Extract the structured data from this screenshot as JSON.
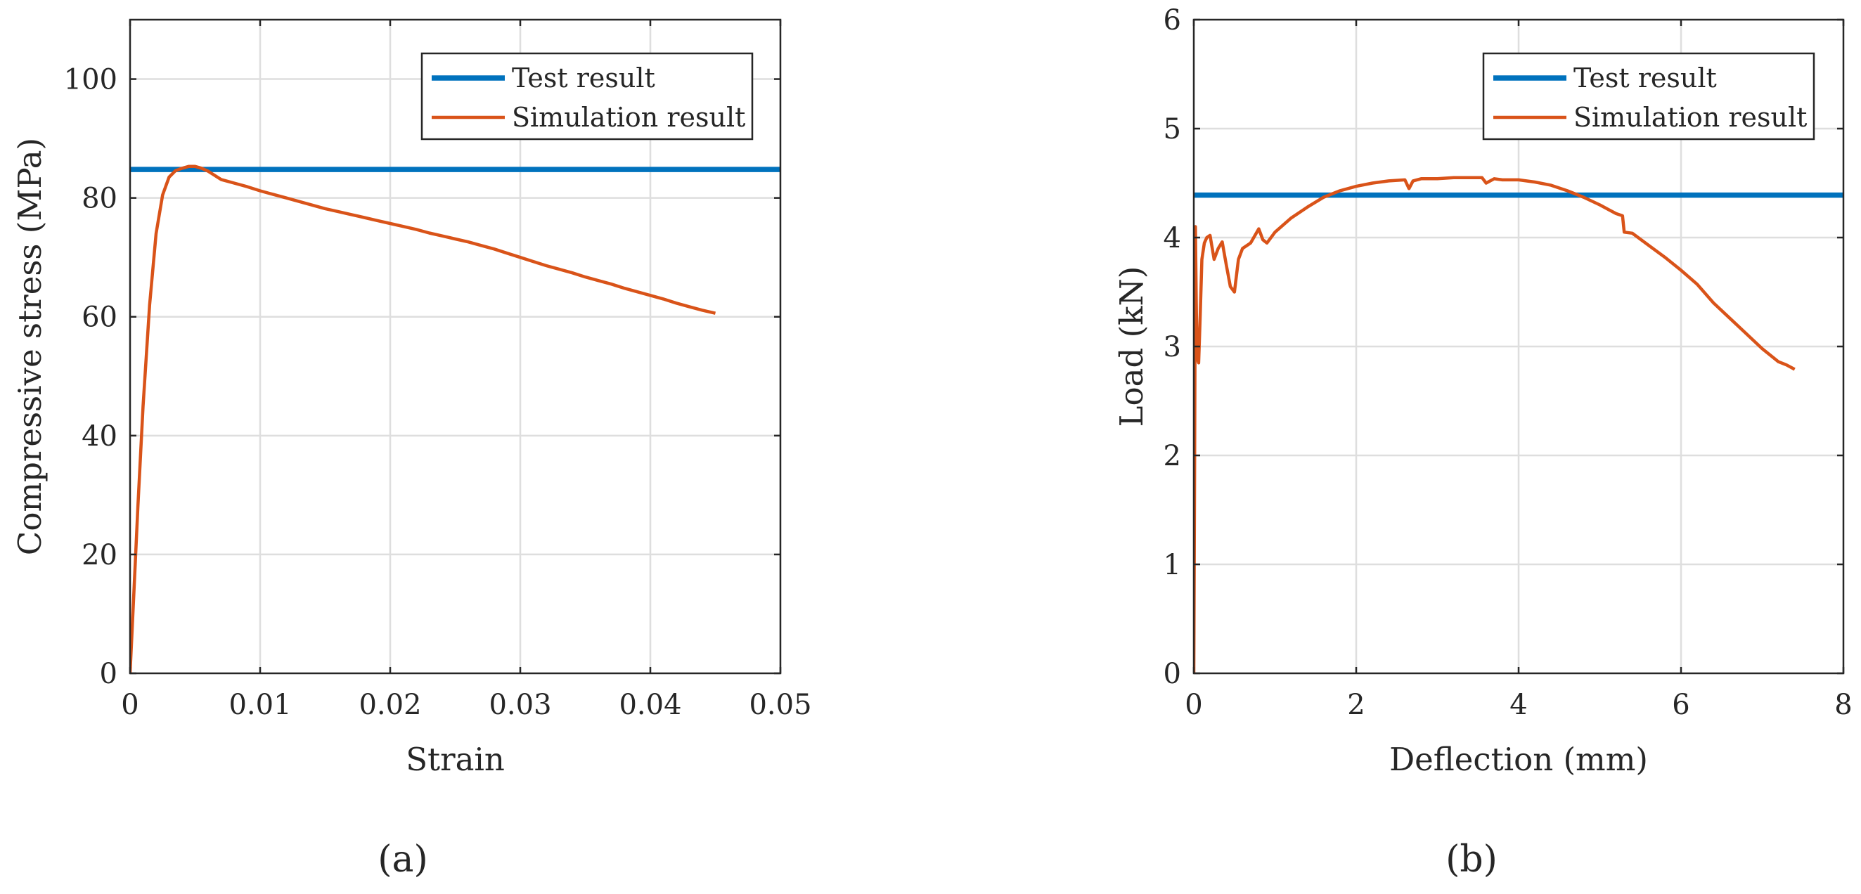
{
  "chart_data": [
    {
      "type": "line",
      "panel_label": "(a)",
      "xlabel": "Strain",
      "ylabel": "Compressive stress (MPa)",
      "xlim": [
        0,
        0.05
      ],
      "ylim": [
        0,
        110
      ],
      "xticks": [
        0,
        0.01,
        0.02,
        0.03,
        0.04,
        0.05
      ],
      "xtick_labels": [
        "0",
        "0.01",
        "0.02",
        "0.03",
        "0.04",
        "0.05"
      ],
      "yticks": [
        0,
        20,
        40,
        60,
        80,
        100
      ],
      "ytick_labels": [
        "0",
        "20",
        "40",
        "60",
        "80",
        "100"
      ],
      "grid": true,
      "legend_position": "top-right",
      "series": [
        {
          "name": "Test result",
          "color": "#0072BD",
          "style": "thick",
          "x": [
            0,
            0.05
          ],
          "y": [
            84.8,
            84.8
          ]
        },
        {
          "name": "Simulation result",
          "color": "#D95319",
          "style": "normal",
          "x": [
            0,
            0.0003,
            0.0006,
            0.001,
            0.0015,
            0.002,
            0.0025,
            0.003,
            0.0035,
            0.004,
            0.0045,
            0.005,
            0.0055,
            0.006,
            0.0065,
            0.007,
            0.008,
            0.009,
            0.01,
            0.011,
            0.012,
            0.013,
            0.014,
            0.015,
            0.016,
            0.017,
            0.018,
            0.019,
            0.02,
            0.021,
            0.022,
            0.023,
            0.024,
            0.025,
            0.026,
            0.027,
            0.028,
            0.029,
            0.03,
            0.031,
            0.032,
            0.033,
            0.034,
            0.035,
            0.036,
            0.037,
            0.038,
            0.039,
            0.04,
            0.041,
            0.042,
            0.043,
            0.044,
            0.045
          ],
          "y": [
            0,
            14,
            28,
            45,
            62,
            74,
            80.5,
            83.5,
            84.6,
            85,
            85.3,
            85.3,
            85,
            84.5,
            83.8,
            83.1,
            82.5,
            81.9,
            81.2,
            80.6,
            80,
            79.4,
            78.8,
            78.2,
            77.7,
            77.2,
            76.7,
            76.2,
            75.7,
            75.2,
            74.7,
            74.1,
            73.6,
            73.1,
            72.6,
            72,
            71.4,
            70.7,
            70,
            69.3,
            68.6,
            68,
            67.4,
            66.7,
            66.1,
            65.5,
            64.8,
            64.2,
            63.6,
            63,
            62.3,
            61.7,
            61.1,
            60.6
          ]
        }
      ]
    },
    {
      "type": "line",
      "panel_label": "(b)",
      "xlabel": "Deflection (mm)",
      "ylabel": "Load (kN)",
      "xlim": [
        0,
        8
      ],
      "ylim": [
        0,
        6
      ],
      "xticks": [
        0,
        2,
        4,
        6,
        8
      ],
      "xtick_labels": [
        "0",
        "2",
        "4",
        "6",
        "8"
      ],
      "yticks": [
        0,
        1,
        2,
        3,
        4,
        5,
        6
      ],
      "ytick_labels": [
        "0",
        "1",
        "2",
        "3",
        "4",
        "5",
        "6"
      ],
      "grid": true,
      "legend_position": "top-right",
      "series": [
        {
          "name": "Test result",
          "color": "#0072BD",
          "style": "thick",
          "x": [
            0,
            8
          ],
          "y": [
            4.39,
            4.39
          ]
        },
        {
          "name": "Simulation result",
          "color": "#D95319",
          "style": "normal",
          "x": [
            0,
            0.01,
            0.02,
            0.03,
            0.04,
            0.06,
            0.08,
            0.1,
            0.13,
            0.16,
            0.2,
            0.25,
            0.3,
            0.35,
            0.4,
            0.45,
            0.5,
            0.55,
            0.6,
            0.7,
            0.8,
            0.85,
            0.9,
            1.0,
            1.2,
            1.4,
            1.6,
            1.8,
            2.0,
            2.2,
            2.4,
            2.6,
            2.65,
            2.7,
            2.8,
            3.0,
            3.2,
            3.4,
            3.55,
            3.6,
            3.7,
            3.8,
            4.0,
            4.2,
            4.4,
            4.6,
            4.8,
            5.0,
            5.2,
            5.28,
            5.3,
            5.4,
            5.6,
            5.8,
            6.0,
            6.2,
            6.4,
            6.6,
            6.8,
            7.0,
            7.2,
            7.3,
            7.4
          ],
          "y": [
            0,
            2.0,
            4.1,
            3.4,
            2.9,
            2.85,
            3.3,
            3.8,
            3.95,
            4.0,
            4.02,
            3.8,
            3.9,
            3.96,
            3.75,
            3.55,
            3.5,
            3.8,
            3.9,
            3.95,
            4.08,
            3.98,
            3.95,
            4.05,
            4.18,
            4.28,
            4.37,
            4.43,
            4.47,
            4.5,
            4.52,
            4.53,
            4.45,
            4.52,
            4.54,
            4.54,
            4.55,
            4.55,
            4.55,
            4.5,
            4.54,
            4.53,
            4.53,
            4.51,
            4.48,
            4.43,
            4.37,
            4.3,
            4.22,
            4.2,
            4.05,
            4.04,
            3.93,
            3.82,
            3.7,
            3.57,
            3.4,
            3.26,
            3.12,
            2.98,
            2.86,
            2.83,
            2.79
          ]
        }
      ]
    }
  ]
}
